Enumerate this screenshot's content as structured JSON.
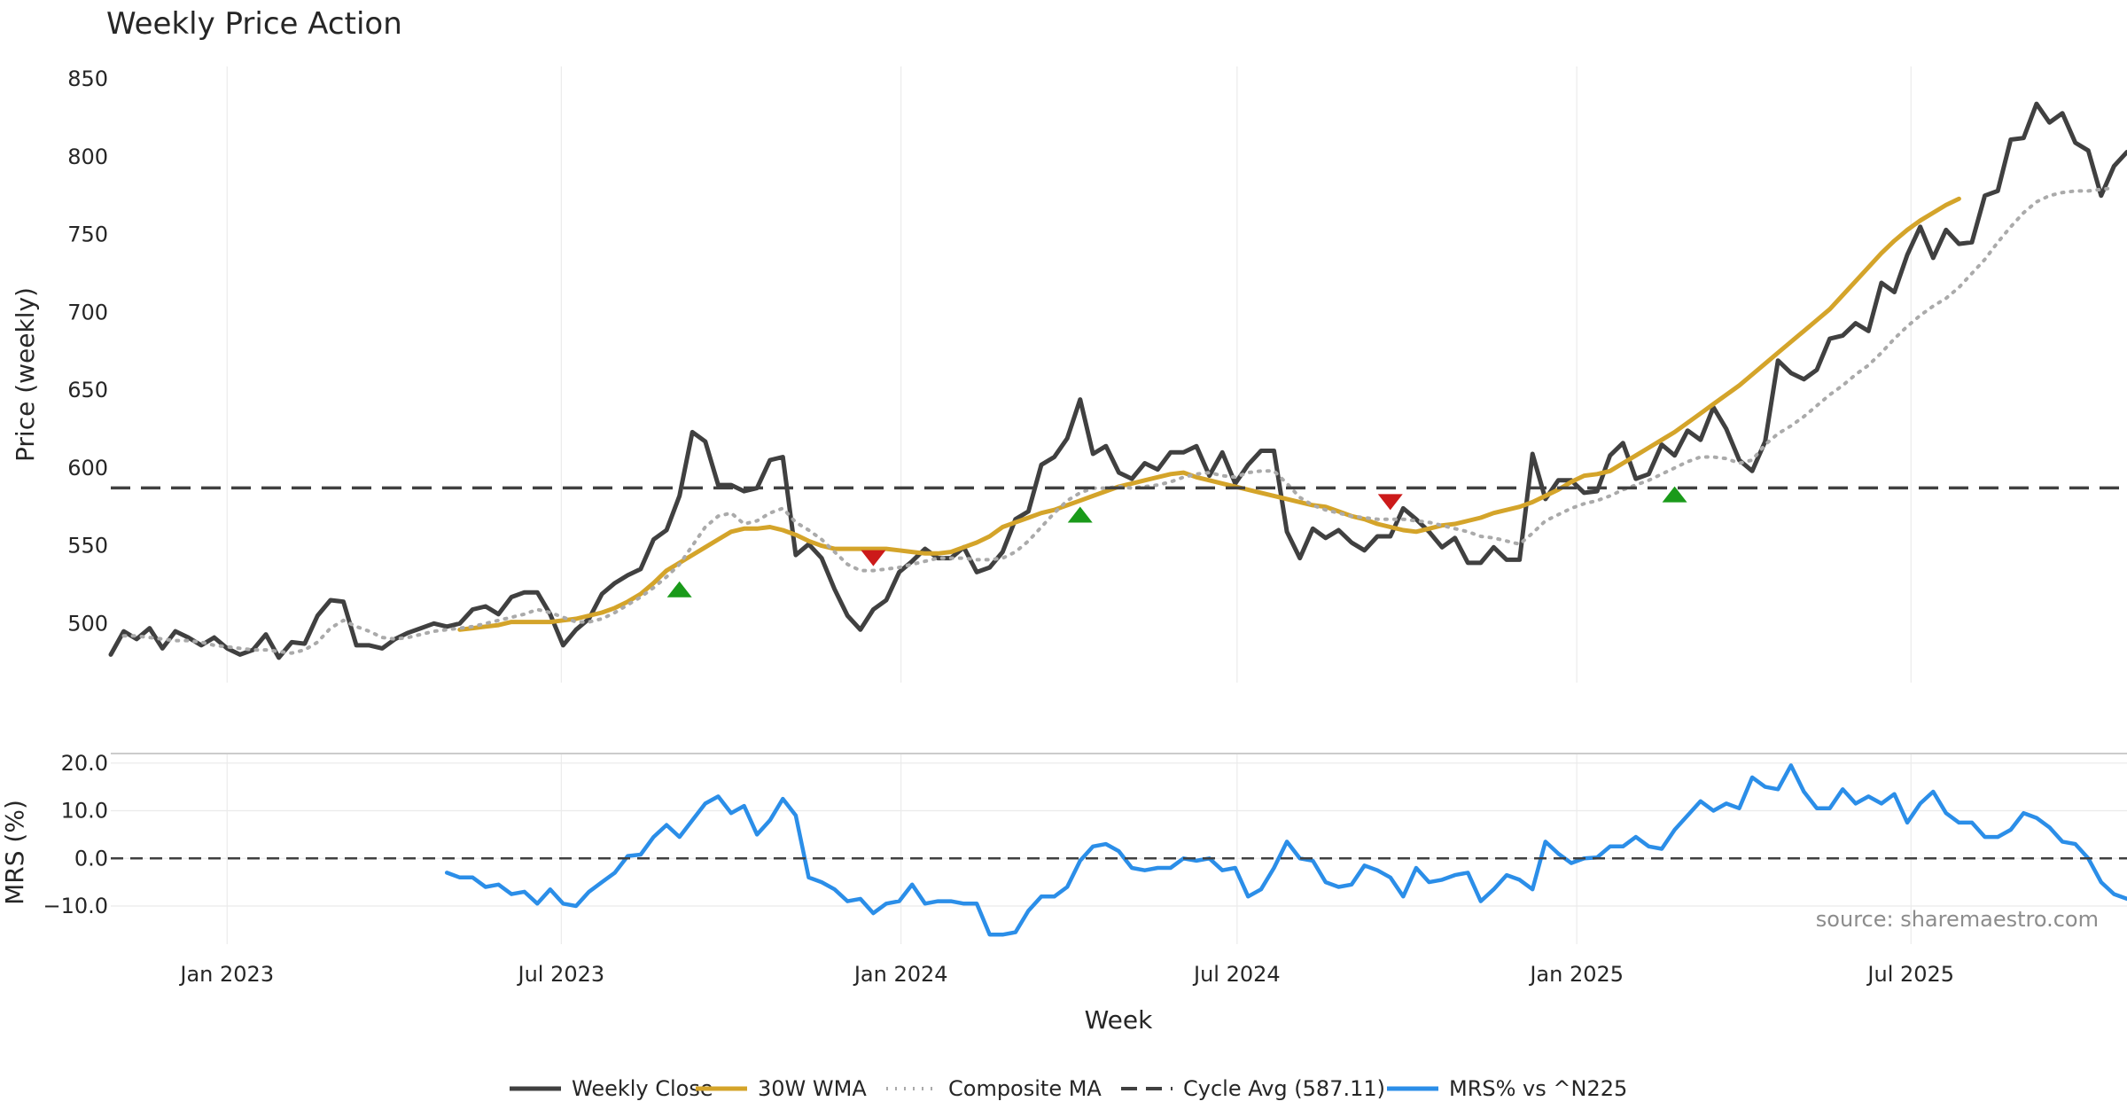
{
  "chart_data": {
    "type": "line",
    "title": "Weekly Price Action",
    "xlabel": "Week",
    "x_tick_labels": [
      "Jan 2023",
      "Jul 2023",
      "Jan 2024",
      "Jul 2024",
      "Jan 2025",
      "Jul 2025"
    ],
    "x_tick_dates": [
      "2023-01-01",
      "2023-07-01",
      "2024-01-01",
      "2024-07-01",
      "2025-01-01",
      "2025-07-01"
    ],
    "x_range": [
      "2022-10-30",
      "2025-10-26"
    ],
    "grid": true,
    "legend_position": "bottom-center",
    "source_text": "source: sharemaestro.com",
    "panels": [
      {
        "name": "price",
        "ylabel": "Price (weekly)",
        "ylim": [
          462,
          858
        ],
        "y_ticks": [
          500,
          550,
          600,
          650,
          700,
          750,
          800,
          850
        ],
        "y_tick_labels": [
          "500",
          "550",
          "600",
          "650",
          "700",
          "750",
          "800",
          "850"
        ]
      },
      {
        "name": "mrs",
        "ylabel": "MRS (%)",
        "ylim": [
          -18,
          22
        ],
        "y_ticks": [
          -10,
          0,
          10,
          20
        ],
        "y_tick_labels": [
          "−10.0",
          "0.0",
          "10.0",
          "20.0"
        ]
      }
    ],
    "series": [
      {
        "name": "Weekly Close",
        "panel": "price",
        "color": "#404040",
        "style": "solid",
        "start_date": "2022-10-30",
        "values": [
          480,
          495,
          490,
          497,
          484,
          495,
          491,
          486,
          491,
          484,
          480,
          483,
          493,
          478,
          488,
          487,
          505,
          515,
          514,
          486,
          486,
          484,
          490,
          494,
          497,
          500,
          498,
          500,
          509,
          511,
          506,
          517,
          520,
          520,
          506,
          486,
          496,
          503,
          519,
          526,
          531,
          535,
          554,
          560,
          582,
          623,
          617,
          589,
          589,
          585,
          587,
          605,
          607,
          544,
          551,
          542,
          522,
          505,
          496,
          509,
          515,
          533,
          540,
          548,
          542,
          542,
          549,
          533,
          536,
          546,
          567,
          572,
          602,
          607,
          619,
          644,
          609,
          614,
          597,
          593,
          603,
          599,
          610,
          610,
          614,
          595,
          610,
          590,
          602,
          611,
          611,
          559,
          542,
          561,
          555,
          560,
          552,
          547,
          556,
          556,
          574,
          567,
          559,
          549,
          555,
          539,
          539,
          549,
          541,
          541,
          609,
          580,
          592,
          592,
          584,
          585,
          608,
          616,
          593,
          596,
          615,
          608,
          624,
          618,
          639,
          625,
          605,
          598,
          617,
          669,
          661,
          657,
          663,
          683,
          685,
          693,
          688,
          719,
          713,
          737,
          755,
          735,
          753,
          744,
          745,
          775,
          778,
          811,
          812,
          834,
          822,
          828,
          809,
          804,
          775,
          794,
          803
        ]
      },
      {
        "name": "30W WMA",
        "panel": "price",
        "color": "#d4a42a",
        "style": "solid",
        "start_date": "2023-05-07",
        "values": [
          496,
          497,
          498,
          499,
          501,
          501,
          501,
          501,
          502,
          503,
          505,
          507,
          510,
          514,
          519,
          526,
          534,
          539,
          544,
          549,
          554,
          559,
          561,
          561,
          562,
          560,
          557,
          553,
          550,
          548,
          548,
          548,
          548,
          548,
          547,
          546,
          545,
          545,
          546,
          549,
          552,
          556,
          562,
          565,
          568,
          571,
          573,
          576,
          579,
          582,
          585,
          588,
          590,
          592,
          594,
          596,
          597,
          594,
          592,
          590,
          588,
          586,
          584,
          582,
          580,
          578,
          576,
          575,
          572,
          569,
          567,
          564,
          562,
          560,
          559,
          561,
          563,
          564,
          566,
          568,
          571,
          573,
          575,
          578,
          582,
          586,
          591,
          595,
          596,
          598,
          603,
          608,
          613,
          618,
          623,
          629,
          635,
          641,
          647,
          653,
          660,
          667,
          674,
          681,
          688,
          695,
          702,
          711,
          720,
          729,
          738,
          746,
          753,
          759,
          764,
          769,
          773
        ]
      },
      {
        "name": "Composite MA",
        "panel": "price",
        "color": "#aaaaaa",
        "style": "dotted",
        "start_date": "2022-11-06",
        "values": [
          492,
          492,
          491,
          490,
          489,
          489,
          488,
          486,
          485,
          484,
          483,
          483,
          482,
          481,
          483,
          488,
          497,
          502,
          498,
          495,
          491,
          490,
          491,
          493,
          495,
          496,
          497,
          498,
          500,
          502,
          504,
          506,
          509,
          507,
          504,
          501,
          501,
          503,
          507,
          512,
          517,
          523,
          530,
          538,
          550,
          562,
          569,
          571,
          564,
          566,
          571,
          574,
          565,
          560,
          554,
          546,
          538,
          534,
          534,
          535,
          536,
          538,
          540,
          542,
          542,
          542,
          541,
          541,
          542,
          546,
          553,
          562,
          571,
          579,
          584,
          587,
          587,
          588,
          587,
          588,
          589,
          591,
          594,
          596,
          597,
          595,
          594,
          597,
          598,
          598,
          590,
          581,
          576,
          573,
          571,
          569,
          568,
          567,
          567,
          567,
          566,
          565,
          563,
          561,
          559,
          556,
          555,
          553,
          551,
          558,
          566,
          570,
          574,
          577,
          579,
          582,
          586,
          589,
          592,
          596,
          600,
          604,
          607,
          607,
          606,
          603,
          605,
          615,
          622,
          627,
          633,
          640,
          647,
          653,
          660,
          666,
          674,
          683,
          691,
          698,
          704,
          709,
          716,
          725,
          734,
          745,
          755,
          764,
          771,
          775,
          777,
          778,
          778,
          779,
          780
        ]
      },
      {
        "name": "Cycle Avg (587.11)",
        "panel": "price",
        "color": "#404040",
        "style": "dashed",
        "value": 587.11
      },
      {
        "name": "MRS% vs ^N225",
        "panel": "mrs",
        "color": "#2b8ee8",
        "style": "solid",
        "start_date": "2023-04-30",
        "values": [
          -3,
          -4,
          -4,
          -6,
          -5.5,
          -7.5,
          -7,
          -9.5,
          -6.5,
          -9.5,
          -10,
          -7,
          -5,
          -3,
          0.5,
          0.8,
          4.5,
          7,
          4.5,
          8,
          11.5,
          13,
          9.5,
          11,
          5,
          8,
          12.5,
          9,
          -4,
          -5,
          -6.5,
          -9,
          -8.5,
          -11.5,
          -9.5,
          -9,
          -5.5,
          -9.5,
          -9,
          -9,
          -9.5,
          -9.5,
          -16,
          -16,
          -15.5,
          -11,
          -8,
          -8,
          -6,
          -0.5,
          2.5,
          3,
          1.5,
          -2,
          -2.5,
          -2,
          -2,
          0,
          -0.5,
          0,
          -2.5,
          -2,
          -8,
          -6.5,
          -2,
          3.5,
          0,
          -0.5,
          -5,
          -6,
          -5.5,
          -1.5,
          -2.5,
          -4,
          -8,
          -2,
          -5,
          -4.5,
          -3.5,
          -3,
          -9,
          -6.5,
          -3.5,
          -4.5,
          -6.5,
          3.5,
          1,
          -1,
          0,
          0.2,
          2.5,
          2.5,
          4.5,
          2.5,
          2,
          6,
          9,
          12,
          10,
          11.5,
          10.5,
          17,
          15,
          14.5,
          19.5,
          14,
          10.5,
          10.5,
          14.5,
          11.5,
          13,
          11.5,
          13.5,
          7.5,
          11.5,
          14,
          9.5,
          7.5,
          7.5,
          4.5,
          4.5,
          6,
          9.5,
          8.5,
          6.5,
          3.5,
          3,
          0,
          -5,
          -7.5,
          -8.5,
          -9
        ]
      },
      {
        "name": "MRS zero line",
        "panel": "mrs",
        "color": "#404040",
        "style": "dashed",
        "value": 0
      }
    ],
    "signals": [
      {
        "type": "buy",
        "color": "#1a9a1a",
        "date": "2023-09-03",
        "value": 522
      },
      {
        "type": "sell",
        "color": "#cc1a1a",
        "date": "2023-12-17",
        "value": 542
      },
      {
        "type": "buy",
        "color": "#1a9a1a",
        "date": "2024-04-07",
        "value": 570
      },
      {
        "type": "sell",
        "color": "#cc1a1a",
        "date": "2024-09-22",
        "value": 578
      },
      {
        "type": "buy",
        "color": "#1a9a1a",
        "date": "2025-02-23",
        "value": 583
      }
    ],
    "legend": [
      {
        "label": "Weekly Close",
        "color": "#404040",
        "style": "solid"
      },
      {
        "label": "30W WMA",
        "color": "#d4a42a",
        "style": "solid"
      },
      {
        "label": "Composite MA",
        "color": "#aaaaaa",
        "style": "dotted"
      },
      {
        "label": "Cycle Avg (587.11)",
        "color": "#404040",
        "style": "dashed"
      },
      {
        "label": "MRS% vs ^N225",
        "color": "#2b8ee8",
        "style": "solid"
      }
    ]
  }
}
